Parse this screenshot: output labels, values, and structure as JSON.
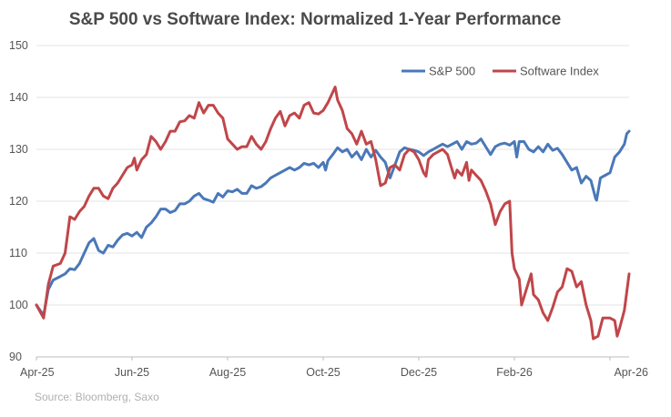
{
  "chart_data": {
    "type": "line",
    "title": "S&P 500 vs Software Index: Normalized 1-Year Performance",
    "xlabel": "",
    "ylabel": "",
    "ylim": [
      90,
      150
    ],
    "yticks": [
      "90",
      "100",
      "110",
      "120",
      "130",
      "140",
      "150"
    ],
    "xlim": [
      0,
      12
    ],
    "xticks": [
      {
        "label": "Apr-25",
        "x": 0
      },
      {
        "label": "Jun-25",
        "x": 2
      },
      {
        "label": "Aug-25",
        "x": 4
      },
      {
        "label": "Oct-25",
        "x": 6
      },
      {
        "label": "Dec-25",
        "x": 8
      },
      {
        "label": "Feb-26",
        "x": 10
      },
      {
        "label": "Apr-26",
        "x": 12
      }
    ],
    "grid": "horizontal",
    "legend": "top-right",
    "series": [
      {
        "name": "S&P 500",
        "color": "#4a78b8",
        "points": [
          [
            0,
            100
          ],
          [
            0.15,
            98
          ],
          [
            0.25,
            103
          ],
          [
            0.35,
            104.8
          ],
          [
            0.5,
            105.5
          ],
          [
            0.6,
            106
          ],
          [
            0.7,
            107
          ],
          [
            0.8,
            106.8
          ],
          [
            0.9,
            108
          ],
          [
            1,
            110
          ],
          [
            1.1,
            112
          ],
          [
            1.2,
            112.8
          ],
          [
            1.3,
            110.5
          ],
          [
            1.4,
            110
          ],
          [
            1.5,
            111.5
          ],
          [
            1.6,
            111.2
          ],
          [
            1.7,
            112.5
          ],
          [
            1.8,
            113.5
          ],
          [
            1.9,
            113.8
          ],
          [
            2,
            113.3
          ],
          [
            2.1,
            114
          ],
          [
            2.2,
            113
          ],
          [
            2.3,
            115
          ],
          [
            2.4,
            115.8
          ],
          [
            2.5,
            117
          ],
          [
            2.6,
            118.5
          ],
          [
            2.7,
            118.5
          ],
          [
            2.8,
            117.8
          ],
          [
            2.9,
            118.2
          ],
          [
            3,
            119.5
          ],
          [
            3.1,
            119.5
          ],
          [
            3.2,
            120
          ],
          [
            3.3,
            121
          ],
          [
            3.4,
            121.5
          ],
          [
            3.5,
            120.5
          ],
          [
            3.6,
            120.2
          ],
          [
            3.7,
            119.8
          ],
          [
            3.8,
            121.5
          ],
          [
            3.9,
            120.8
          ],
          [
            4,
            122
          ],
          [
            4.1,
            121.8
          ],
          [
            4.2,
            122.3
          ],
          [
            4.3,
            121.5
          ],
          [
            4.4,
            121.5
          ],
          [
            4.5,
            123
          ],
          [
            4.6,
            122.5
          ],
          [
            4.7,
            122.8
          ],
          [
            4.8,
            123.5
          ],
          [
            4.9,
            124.5
          ],
          [
            5,
            125
          ],
          [
            5.1,
            125.5
          ],
          [
            5.2,
            126
          ],
          [
            5.3,
            126.5
          ],
          [
            5.4,
            126
          ],
          [
            5.5,
            126.5
          ],
          [
            5.6,
            127.3
          ],
          [
            5.7,
            127
          ],
          [
            5.8,
            127.3
          ],
          [
            5.9,
            126.5
          ],
          [
            6,
            127.5
          ],
          [
            6.05,
            126
          ],
          [
            6.1,
            127.8
          ],
          [
            6.2,
            129
          ],
          [
            6.3,
            130.3
          ],
          [
            6.4,
            129.5
          ],
          [
            6.5,
            130
          ],
          [
            6.6,
            128.5
          ],
          [
            6.7,
            129.5
          ],
          [
            6.8,
            128
          ],
          [
            6.9,
            130
          ],
          [
            7,
            128.5
          ],
          [
            7.1,
            129.8
          ],
          [
            7.2,
            128.5
          ],
          [
            7.3,
            127.5
          ],
          [
            7.4,
            124.5
          ],
          [
            7.5,
            127
          ],
          [
            7.6,
            129.5
          ],
          [
            7.7,
            130.3
          ],
          [
            7.8,
            130
          ],
          [
            7.9,
            129.8
          ],
          [
            8,
            129.5
          ],
          [
            8.1,
            128.8
          ],
          [
            8.2,
            129.5
          ],
          [
            8.3,
            130
          ],
          [
            8.4,
            130.5
          ],
          [
            8.5,
            131
          ],
          [
            8.6,
            130.5
          ],
          [
            8.7,
            131
          ],
          [
            8.8,
            131.5
          ],
          [
            8.9,
            130
          ],
          [
            9,
            131.5
          ],
          [
            9.1,
            131
          ],
          [
            9.2,
            131.2
          ],
          [
            9.3,
            132
          ],
          [
            9.4,
            130.5
          ],
          [
            9.5,
            129
          ],
          [
            9.6,
            130.5
          ],
          [
            9.7,
            131
          ],
          [
            9.8,
            131.2
          ],
          [
            9.9,
            130.8
          ],
          [
            10,
            131.5
          ],
          [
            10.05,
            128.5
          ],
          [
            10.1,
            131.5
          ],
          [
            10.2,
            131.5
          ],
          [
            10.3,
            130
          ],
          [
            10.4,
            129.5
          ],
          [
            10.5,
            130.5
          ],
          [
            10.6,
            129.5
          ],
          [
            10.7,
            131
          ],
          [
            10.8,
            129.8
          ],
          [
            10.9,
            130.2
          ],
          [
            11,
            129
          ],
          [
            11.1,
            127.5
          ],
          [
            11.2,
            126
          ],
          [
            11.3,
            126.5
          ],
          [
            11.4,
            123.5
          ],
          [
            11.5,
            124.8
          ],
          [
            11.6,
            124
          ],
          [
            11.7,
            120.5
          ],
          [
            11.72,
            120.2
          ],
          [
            11.8,
            124.5
          ],
          [
            11.9,
            125
          ],
          [
            12,
            125.5
          ],
          [
            12.1,
            128.5
          ],
          [
            12.2,
            129.5
          ],
          [
            12.3,
            131
          ],
          [
            12.35,
            133
          ],
          [
            12.4,
            133.5
          ]
        ]
      },
      {
        "name": "Software Index",
        "color": "#c0464a",
        "points": [
          [
            0,
            100
          ],
          [
            0.15,
            97.5
          ],
          [
            0.25,
            104
          ],
          [
            0.35,
            107.5
          ],
          [
            0.5,
            108
          ],
          [
            0.6,
            110
          ],
          [
            0.7,
            117
          ],
          [
            0.8,
            116.5
          ],
          [
            0.9,
            118
          ],
          [
            1,
            119
          ],
          [
            1.1,
            121
          ],
          [
            1.2,
            122.5
          ],
          [
            1.3,
            122.5
          ],
          [
            1.4,
            121
          ],
          [
            1.5,
            120.5
          ],
          [
            1.6,
            122.5
          ],
          [
            1.7,
            123.5
          ],
          [
            1.8,
            125
          ],
          [
            1.9,
            126.5
          ],
          [
            2,
            127
          ],
          [
            2.05,
            128.3
          ],
          [
            2.1,
            126
          ],
          [
            2.2,
            128
          ],
          [
            2.3,
            129
          ],
          [
            2.4,
            132.5
          ],
          [
            2.5,
            131.5
          ],
          [
            2.6,
            130
          ],
          [
            2.7,
            131.5
          ],
          [
            2.8,
            133.5
          ],
          [
            2.9,
            133.5
          ],
          [
            3,
            135.3
          ],
          [
            3.1,
            135.5
          ],
          [
            3.2,
            136.5
          ],
          [
            3.3,
            136
          ],
          [
            3.4,
            139
          ],
          [
            3.5,
            137
          ],
          [
            3.6,
            138.5
          ],
          [
            3.7,
            138.5
          ],
          [
            3.8,
            137
          ],
          [
            3.9,
            136
          ],
          [
            4,
            132
          ],
          [
            4.1,
            131
          ],
          [
            4.2,
            130
          ],
          [
            4.3,
            130.5
          ],
          [
            4.4,
            130.5
          ],
          [
            4.5,
            132.5
          ],
          [
            4.6,
            131
          ],
          [
            4.7,
            130
          ],
          [
            4.8,
            131.5
          ],
          [
            4.9,
            134
          ],
          [
            5,
            136
          ],
          [
            5.1,
            137.3
          ],
          [
            5.2,
            134.5
          ],
          [
            5.3,
            136.5
          ],
          [
            5.4,
            137
          ],
          [
            5.5,
            136
          ],
          [
            5.6,
            138.5
          ],
          [
            5.7,
            139
          ],
          [
            5.8,
            137
          ],
          [
            5.9,
            136.8
          ],
          [
            6,
            137.5
          ],
          [
            6.1,
            139
          ],
          [
            6.2,
            141
          ],
          [
            6.25,
            142
          ],
          [
            6.3,
            139.5
          ],
          [
            6.4,
            137.5
          ],
          [
            6.5,
            134
          ],
          [
            6.6,
            133
          ],
          [
            6.7,
            131
          ],
          [
            6.8,
            133.5
          ],
          [
            6.9,
            131
          ],
          [
            7,
            131.5
          ],
          [
            7.1,
            128
          ],
          [
            7.2,
            123
          ],
          [
            7.3,
            123.5
          ],
          [
            7.4,
            126.5
          ],
          [
            7.5,
            127
          ],
          [
            7.6,
            126
          ],
          [
            7.7,
            129
          ],
          [
            7.8,
            130
          ],
          [
            7.9,
            129.5
          ],
          [
            8,
            128
          ],
          [
            8.1,
            125.5
          ],
          [
            8.15,
            124.8
          ],
          [
            8.2,
            128
          ],
          [
            8.3,
            129
          ],
          [
            8.4,
            129.5
          ],
          [
            8.5,
            130
          ],
          [
            8.6,
            129
          ],
          [
            8.7,
            126
          ],
          [
            8.75,
            124.5
          ],
          [
            8.8,
            126
          ],
          [
            8.9,
            125
          ],
          [
            9,
            127.5
          ],
          [
            9.05,
            124
          ],
          [
            9.1,
            126
          ],
          [
            9.2,
            125
          ],
          [
            9.3,
            124
          ],
          [
            9.4,
            122
          ],
          [
            9.5,
            119.5
          ],
          [
            9.6,
            115.5
          ],
          [
            9.7,
            118
          ],
          [
            9.8,
            119.5
          ],
          [
            9.9,
            120
          ],
          [
            9.95,
            110
          ],
          [
            10,
            107
          ],
          [
            10.1,
            105
          ],
          [
            10.15,
            100
          ],
          [
            10.25,
            103
          ],
          [
            10.35,
            106
          ],
          [
            10.4,
            102
          ],
          [
            10.5,
            101
          ],
          [
            10.6,
            98.5
          ],
          [
            10.7,
            97
          ],
          [
            10.8,
            99.5
          ],
          [
            10.9,
            102.5
          ],
          [
            11,
            103.5
          ],
          [
            11.1,
            107
          ],
          [
            11.2,
            106.5
          ],
          [
            11.3,
            103.5
          ],
          [
            11.4,
            104.5
          ],
          [
            11.5,
            100
          ],
          [
            11.6,
            97
          ],
          [
            11.65,
            93.5
          ],
          [
            11.75,
            94
          ],
          [
            11.85,
            97.5
          ],
          [
            12,
            97.5
          ],
          [
            12.1,
            97
          ],
          [
            12.15,
            94
          ],
          [
            12.2,
            95.5
          ],
          [
            12.3,
            99
          ],
          [
            12.35,
            102.5
          ],
          [
            12.4,
            106
          ]
        ]
      }
    ],
    "source": "Source: Bloomberg, Saxo"
  }
}
